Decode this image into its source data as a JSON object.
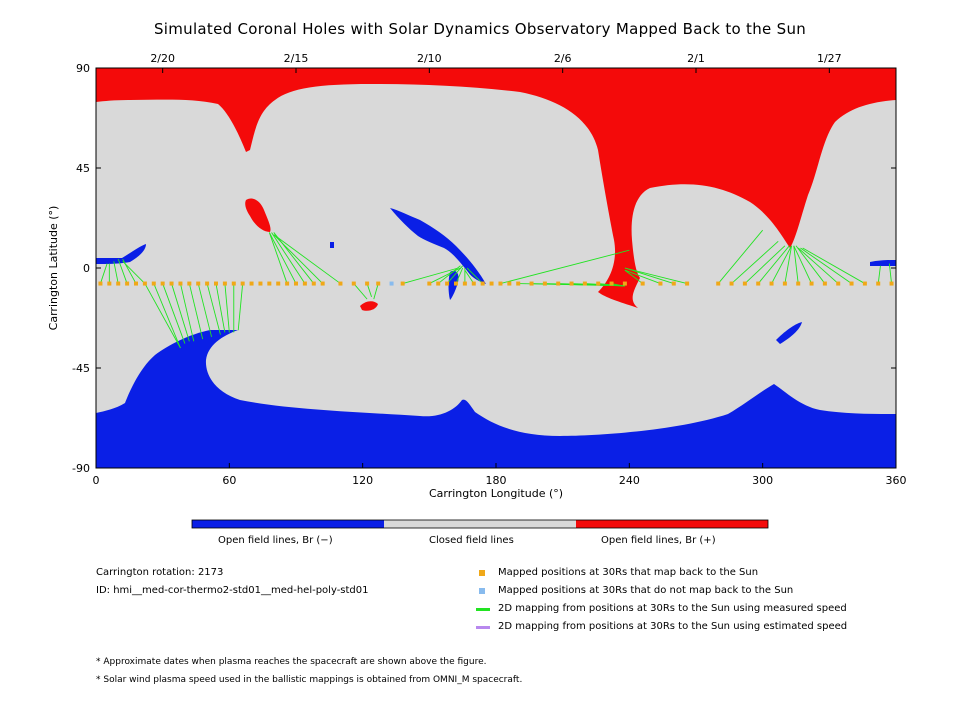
{
  "chart_data": {
    "type": "scatter",
    "title": "Simulated Coronal Holes with Solar Dynamics Observatory Mapped Back to the Sun",
    "xlabel": "Carrington Longitude (°)",
    "ylabel": "Carrington Latitude (°)",
    "xlim": [
      0,
      360
    ],
    "ylim": [
      -90,
      90
    ],
    "xticks": [
      0,
      60,
      120,
      180,
      240,
      300,
      360
    ],
    "yticks": [
      -90,
      -45,
      0,
      45,
      90
    ],
    "top_axis_ticks": [
      {
        "lon": 30,
        "label": "2/20"
      },
      {
        "lon": 90,
        "label": "2/15"
      },
      {
        "lon": 150,
        "label": "2/10"
      },
      {
        "lon": 210,
        "label": "2/6"
      },
      {
        "lon": 270,
        "label": "2/1"
      },
      {
        "lon": 330,
        "label": "1/27"
      }
    ],
    "colors": {
      "negative": "#0a1fe6",
      "closed": "#d9d9d9",
      "positive": "#f40a0a",
      "mapped_back": "#f0a818",
      "not_mapped": "#88bbee",
      "measured_speed": "#22e322",
      "estimated_speed": "#b888ee"
    },
    "colorbar": {
      "neg_label": "Open field lines, Br (−)",
      "closed_label": "Closed field lines",
      "pos_label": "Open field lines, Br (+)"
    },
    "series": [
      {
        "name": "Mapped positions at 30Rs that map back to the Sun",
        "points": [
          [
            2,
            -7
          ],
          [
            6,
            -7
          ],
          [
            10,
            -7
          ],
          [
            14,
            -7
          ],
          [
            18,
            -7
          ],
          [
            22,
            -7
          ],
          [
            26,
            -7
          ],
          [
            30,
            -7
          ],
          [
            34,
            -7
          ],
          [
            38,
            -7
          ],
          [
            42,
            -7
          ],
          [
            46,
            -7
          ],
          [
            50,
            -7
          ],
          [
            54,
            -7
          ],
          [
            58,
            -7
          ],
          [
            62,
            -7
          ],
          [
            66,
            -7
          ],
          [
            70,
            -7
          ],
          [
            74,
            -7
          ],
          [
            78,
            -7
          ],
          [
            82,
            -7
          ],
          [
            86,
            -7
          ],
          [
            90,
            -7
          ],
          [
            94,
            -7
          ],
          [
            98,
            -7
          ],
          [
            102,
            -7
          ],
          [
            110,
            -7
          ],
          [
            116,
            -7
          ],
          [
            122,
            -7
          ],
          [
            127,
            -7
          ],
          [
            138,
            -7
          ],
          [
            150,
            -7
          ],
          [
            154,
            -7
          ],
          [
            158,
            -7
          ],
          [
            162,
            -7
          ],
          [
            166,
            -7
          ],
          [
            170,
            -7
          ],
          [
            174,
            -7
          ],
          [
            178,
            -7
          ],
          [
            182,
            -7
          ],
          [
            186,
            -7
          ],
          [
            190,
            -7
          ],
          [
            196,
            -7
          ],
          [
            202,
            -7
          ],
          [
            208,
            -7
          ],
          [
            214,
            -7
          ],
          [
            220,
            -7
          ],
          [
            226,
            -7
          ],
          [
            232,
            -7
          ],
          [
            238,
            -7
          ],
          [
            246,
            -7
          ],
          [
            254,
            -7
          ],
          [
            260,
            -7
          ],
          [
            266,
            -7
          ],
          [
            280,
            -7
          ],
          [
            286,
            -7
          ],
          [
            292,
            -7
          ],
          [
            298,
            -7
          ],
          [
            304,
            -7
          ],
          [
            310,
            -7
          ],
          [
            316,
            -7
          ],
          [
            322,
            -7
          ],
          [
            328,
            -7
          ],
          [
            334,
            -7
          ],
          [
            340,
            -7
          ],
          [
            346,
            -7
          ],
          [
            352,
            -7
          ],
          [
            358,
            -7
          ]
        ]
      },
      {
        "name": "Mapped positions at 30Rs that do not map back to the Sun",
        "points": [
          [
            133,
            -7
          ]
        ]
      }
    ],
    "mapping_lines": [
      [
        [
          2,
          -7
        ],
        [
          5,
          2
        ]
      ],
      [
        [
          6,
          -7
        ],
        [
          6,
          2
        ]
      ],
      [
        [
          10,
          -7
        ],
        [
          8,
          3
        ]
      ],
      [
        [
          14,
          -7
        ],
        [
          10,
          4
        ]
      ],
      [
        [
          18,
          -7
        ],
        [
          12,
          4
        ]
      ],
      [
        [
          22,
          -7
        ],
        [
          12,
          3
        ]
      ],
      [
        [
          22,
          -7
        ],
        [
          38,
          -36
        ]
      ],
      [
        [
          26,
          -7
        ],
        [
          38,
          -36
        ]
      ],
      [
        [
          30,
          -7
        ],
        [
          40,
          -34
        ]
      ],
      [
        [
          34,
          -7
        ],
        [
          42,
          -33
        ]
      ],
      [
        [
          38,
          -7
        ],
        [
          44,
          -33
        ]
      ],
      [
        [
          42,
          -7
        ],
        [
          48,
          -32
        ]
      ],
      [
        [
          46,
          -7
        ],
        [
          52,
          -31
        ]
      ],
      [
        [
          50,
          -7
        ],
        [
          56,
          -30
        ]
      ],
      [
        [
          54,
          -7
        ],
        [
          58,
          -29
        ]
      ],
      [
        [
          58,
          -7
        ],
        [
          60,
          -29
        ]
      ],
      [
        [
          62,
          -7
        ],
        [
          62,
          -29
        ]
      ],
      [
        [
          66,
          -7
        ],
        [
          64,
          -28
        ]
      ],
      [
        [
          86,
          -7
        ],
        [
          78,
          16
        ]
      ],
      [
        [
          90,
          -7
        ],
        [
          78,
          16
        ]
      ],
      [
        [
          94,
          -7
        ],
        [
          79,
          16
        ]
      ],
      [
        [
          98,
          -7
        ],
        [
          80,
          16
        ]
      ],
      [
        [
          102,
          -7
        ],
        [
          80,
          15
        ]
      ],
      [
        [
          110,
          -7
        ],
        [
          80,
          15
        ]
      ],
      [
        [
          116,
          -7
        ],
        [
          122,
          -14
        ]
      ],
      [
        [
          122,
          -7
        ],
        [
          124,
          -13
        ]
      ],
      [
        [
          127,
          -7
        ],
        [
          125,
          -14
        ]
      ],
      [
        [
          138,
          -7
        ],
        [
          163,
          0
        ]
      ],
      [
        [
          150,
          -7
        ],
        [
          164,
          0
        ]
      ],
      [
        [
          154,
          -7
        ],
        [
          164,
          1
        ]
      ],
      [
        [
          158,
          -7
        ],
        [
          165,
          1
        ]
      ],
      [
        [
          162,
          -7
        ],
        [
          165,
          0
        ]
      ],
      [
        [
          166,
          -7
        ],
        [
          166,
          0
        ]
      ],
      [
        [
          170,
          -7
        ],
        [
          166,
          -1
        ]
      ],
      [
        [
          174,
          -7
        ],
        [
          167,
          0
        ]
      ],
      [
        [
          182,
          -7
        ],
        [
          240,
          8
        ]
      ],
      [
        [
          190,
          -7
        ],
        [
          238,
          -8
        ]
      ],
      [
        [
          196,
          -7
        ],
        [
          238,
          -8
        ]
      ],
      [
        [
          202,
          -7
        ],
        [
          238,
          -8
        ]
      ],
      [
        [
          208,
          -7
        ],
        [
          238,
          -8
        ]
      ],
      [
        [
          214,
          -7
        ],
        [
          238,
          -8
        ]
      ],
      [
        [
          220,
          -7
        ],
        [
          238,
          -8
        ]
      ],
      [
        [
          226,
          -7
        ],
        [
          237,
          -8
        ]
      ],
      [
        [
          232,
          -7
        ],
        [
          237,
          -8
        ]
      ],
      [
        [
          246,
          -7
        ],
        [
          238,
          -1
        ]
      ],
      [
        [
          254,
          -7
        ],
        [
          238,
          -1
        ]
      ],
      [
        [
          260,
          -7
        ],
        [
          238,
          0
        ]
      ],
      [
        [
          266,
          -7
        ],
        [
          238,
          0
        ]
      ],
      [
        [
          280,
          -7
        ],
        [
          300,
          17
        ]
      ],
      [
        [
          286,
          -7
        ],
        [
          307,
          12
        ]
      ],
      [
        [
          292,
          -7
        ],
        [
          310,
          10
        ]
      ],
      [
        [
          298,
          -7
        ],
        [
          312,
          10
        ]
      ],
      [
        [
          304,
          -7
        ],
        [
          313,
          10
        ]
      ],
      [
        [
          310,
          -7
        ],
        [
          313,
          10
        ]
      ],
      [
        [
          316,
          -7
        ],
        [
          314,
          10
        ]
      ],
      [
        [
          322,
          -7
        ],
        [
          314,
          10
        ]
      ],
      [
        [
          328,
          -7
        ],
        [
          315,
          10
        ]
      ],
      [
        [
          334,
          -7
        ],
        [
          316,
          9
        ]
      ],
      [
        [
          340,
          -7
        ],
        [
          317,
          9
        ]
      ],
      [
        [
          346,
          -7
        ],
        [
          318,
          9
        ]
      ],
      [
        [
          352,
          -7
        ],
        [
          353,
          1
        ]
      ],
      [
        [
          358,
          -7
        ],
        [
          357,
          2
        ]
      ]
    ],
    "legend": [
      {
        "label": "Mapped positions at 30Rs that map back to the Sun",
        "kind": "square",
        "color": "#f0a818"
      },
      {
        "label": "Mapped positions at 30Rs that do not map back to the Sun",
        "kind": "square",
        "color": "#88bbee"
      },
      {
        "label": "2D mapping from positions at 30Rs to the Sun using measured speed",
        "kind": "line",
        "color": "#22e322"
      },
      {
        "label": "2D mapping from positions at 30Rs to the Sun using estimated speed",
        "kind": "line",
        "color": "#b888ee"
      }
    ]
  },
  "info": {
    "rotation": "Carrington rotation: 2173",
    "id": "ID: hmi__med-cor-thermo2-std01__med-hel-poly-std01"
  },
  "footnotes": [
    "* Approximate dates when plasma reaches the spacecraft are shown above the figure.",
    "* Solar wind plasma speed used in the ballistic mappings is obtained from OMNI_M spacecraft."
  ]
}
